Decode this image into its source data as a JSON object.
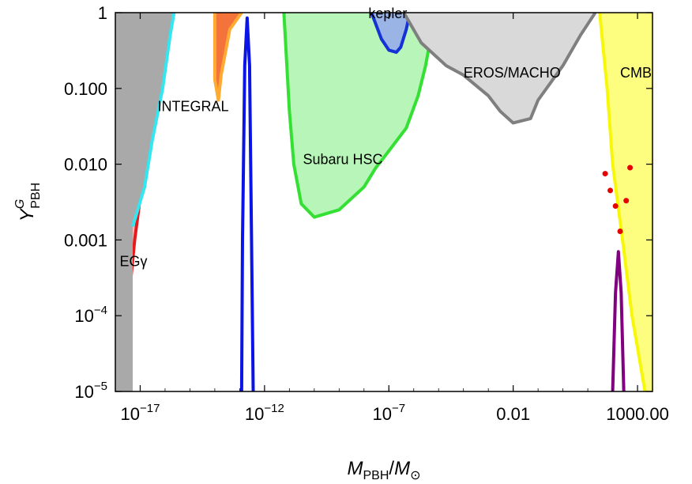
{
  "colors": {
    "background": "#ffffff",
    "frame": "#000000",
    "egamma_fill": "#f9b7b7",
    "egamma_line": "#e41a1c",
    "integral_fill": "#a9a9a9",
    "integral_line": "#33e6f0",
    "orange_fill": "#f4733a",
    "orange_line": "#ffaa33",
    "blue_line": "#0a14e6",
    "subaru_fill": "#b8f5b8",
    "subaru_line": "#33e033",
    "kepler_fill": "#9ab4e6",
    "kepler_line": "#1432d6",
    "eros_fill": "#d9d9d9",
    "eros_line": "#7f7f7f",
    "cmb_fill": "#fdfd80",
    "cmb_line": "#f7f70a",
    "purple_line": "#800080",
    "points": "#e60000"
  },
  "chart_data": {
    "type": "area",
    "title": "",
    "xlabel": {
      "main": "M",
      "main_sub": "PBH",
      "sep": "/",
      "denom": "M",
      "denom_sub": "⊙"
    },
    "ylabel": {
      "main": "Y",
      "sup": "G",
      "sub": "PBH"
    },
    "xscale": "log",
    "yscale": "log",
    "xlim": [
      1e-18,
      4000
    ],
    "ylim": [
      1e-05,
      1
    ],
    "grid": false,
    "x_ticks": [
      {
        "value": 1e-17,
        "base": "10",
        "exp": "−17"
      },
      {
        "value": 1e-12,
        "base": "10",
        "exp": "−12"
      },
      {
        "value": 1e-07,
        "base": "10",
        "exp": "−7"
      },
      {
        "value": 0.01,
        "label": "0.01"
      },
      {
        "value": 1000,
        "label": "1000.00"
      }
    ],
    "y_ticks": [
      {
        "value": 1,
        "label": "1"
      },
      {
        "value": 0.1,
        "label": "0.100"
      },
      {
        "value": 0.01,
        "label": "0.010"
      },
      {
        "value": 0.001,
        "label": "0.001"
      },
      {
        "value": 0.0001,
        "base": "10",
        "exp": "−4"
      },
      {
        "value": 1e-05,
        "base": "10",
        "exp": "−5"
      }
    ],
    "regions": [
      {
        "label": "EGγ",
        "label_at": [
          1.5e-18,
          0.00045
        ],
        "fill_key": "egamma_fill",
        "line_key": "egamma_line",
        "boundary": [
          [
            2.2e-18,
            1e-05
          ],
          [
            3e-18,
            0.0001
          ],
          [
            6e-18,
            0.001
          ],
          [
            1.5e-17,
            0.01
          ],
          [
            4.5e-17,
            0.1
          ],
          [
            1.5e-16,
            1
          ]
        ],
        "fill_to": "left"
      },
      {
        "label": "INTEGRAL",
        "label_at": [
          5e-17,
          0.05
        ],
        "fill_key": "integral_fill",
        "line_key": "integral_line",
        "boundary": [
          [
            5e-18,
            0.0015
          ],
          [
            1.5e-17,
            0.005
          ],
          [
            3e-17,
            0.02
          ],
          [
            8e-17,
            0.1
          ],
          [
            1.6e-16,
            0.5
          ],
          [
            2.3e-16,
            1
          ]
        ],
        "fill_to": "left"
      },
      {
        "label": "",
        "fill_key": "orange_fill",
        "line_key": "orange_line",
        "boundary": [
          [
            1e-14,
            1
          ],
          [
            1e-14,
            0.13
          ],
          [
            1.4e-14,
            0.07
          ],
          [
            1.8e-14,
            0.15
          ],
          [
            4e-14,
            0.6
          ],
          [
            1.2e-13,
            1
          ]
        ],
        "fill_to": "closed"
      },
      {
        "label": "Subaru HSC",
        "label_at": [
          3.5e-11,
          0.01
        ],
        "fill_key": "subaru_fill",
        "line_key": "subaru_line",
        "boundary": [
          [
            6e-12,
            1
          ],
          [
            1e-11,
            0.05
          ],
          [
            1.5e-11,
            0.01
          ],
          [
            3e-11,
            0.003
          ],
          [
            1e-10,
            0.002
          ],
          [
            1e-09,
            0.0025
          ],
          [
            1e-08,
            0.005
          ],
          [
            3e-08,
            0.009
          ],
          [
            6e-08,
            0.012
          ],
          [
            5e-07,
            0.03
          ],
          [
            1.5e-06,
            0.08
          ],
          [
            3e-06,
            0.2
          ],
          [
            5e-06,
            0.5
          ],
          [
            1e-05,
            1
          ]
        ],
        "fill_to": "closed"
      },
      {
        "label": "kepler",
        "label_at": [
          1.5e-08,
          0.85
        ],
        "fill_key": "kepler_fill",
        "line_key": "kepler_line",
        "boundary": [
          [
            2e-08,
            1
          ],
          [
            5e-08,
            0.45
          ],
          [
            1e-07,
            0.32
          ],
          [
            2e-07,
            0.3
          ],
          [
            3e-07,
            0.35
          ],
          [
            5e-07,
            0.6
          ],
          [
            7e-07,
            1
          ]
        ],
        "fill_to": "closed"
      },
      {
        "label": "EROS/MACHO",
        "label_at": [
          0.0001,
          0.14
        ],
        "fill_key": "eros_fill",
        "line_key": "eros_line",
        "boundary": [
          [
            4e-07,
            1
          ],
          [
            2e-06,
            0.4
          ],
          [
            2e-05,
            0.2
          ],
          [
            0.0001,
            0.15
          ],
          [
            0.001,
            0.08
          ],
          [
            0.003,
            0.05
          ],
          [
            0.01,
            0.035
          ],
          [
            0.05,
            0.04
          ],
          [
            0.1,
            0.07
          ],
          [
            1,
            0.2
          ],
          [
            5,
            0.5
          ],
          [
            20,
            1
          ]
        ],
        "fill_to": "closed"
      },
      {
        "label": "CMB",
        "label_at": [
          200,
          0.14
        ],
        "fill_key": "cmb_fill",
        "line_key": "cmb_line",
        "boundary": [
          [
            30,
            1
          ],
          [
            60,
            0.1
          ],
          [
            100,
            0.01
          ],
          [
            250,
            0.001
          ],
          [
            600,
            0.0001
          ],
          [
            2000,
            1e-05
          ]
        ],
        "fill_to": "right"
      }
    ],
    "peaks": [
      {
        "line_key": "blue_line",
        "points": [
          [
            1.2e-13,
            1e-05
          ],
          [
            1.3e-13,
            0.001
          ],
          [
            1.6e-13,
            0.2
          ],
          [
            2e-13,
            0.85
          ],
          [
            2.5e-13,
            0.2
          ],
          [
            3e-13,
            0.001
          ],
          [
            3.5e-13,
            1e-05
          ]
        ]
      },
      {
        "line_key": "purple_line",
        "points": [
          [
            100,
            1e-05
          ],
          [
            130,
            0.0002
          ],
          [
            170,
            0.0007
          ],
          [
            220,
            0.0002
          ],
          [
            280,
            1e-05
          ]
        ]
      }
    ],
    "scatter": {
      "color_key": "points",
      "points": [
        [
          50,
          0.0075
        ],
        [
          80,
          0.0045
        ],
        [
          130,
          0.0028
        ],
        [
          200,
          0.0013
        ],
        [
          350,
          0.0033
        ],
        [
          500,
          0.009
        ]
      ]
    }
  }
}
